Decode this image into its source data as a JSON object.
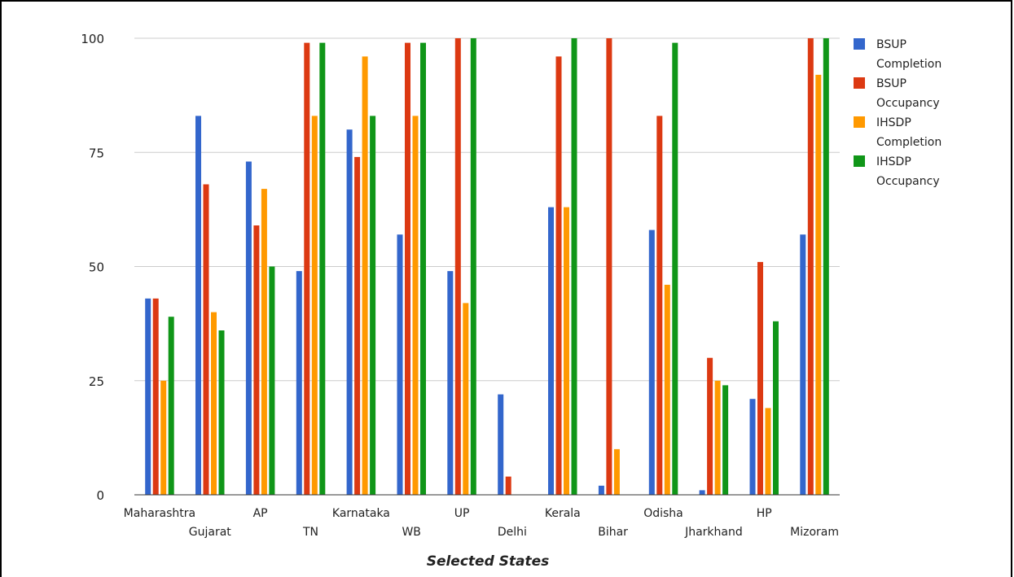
{
  "chart_data": {
    "type": "bar",
    "title": "",
    "xlabel": "Selected States",
    "ylabel": "",
    "ylim": [
      0,
      100
    ],
    "yticks": [
      "0",
      "25",
      "50",
      "75",
      "100"
    ],
    "grid": true,
    "legend_position": "right",
    "categories": [
      "Maharashtra",
      "Gujarat",
      "AP",
      "TN",
      "Karnataka",
      "WB",
      "UP",
      "Delhi",
      "Kerala",
      "Bihar",
      "Odisha",
      "Jharkhand",
      "HP",
      "Mizoram"
    ],
    "series": [
      {
        "name": "BSUP Completion",
        "legend_lines": [
          "BSUP",
          "Completion"
        ],
        "color": "#3366cc",
        "values": [
          43,
          83,
          73,
          49,
          80,
          57,
          49,
          22,
          63,
          2,
          58,
          1,
          21,
          57
        ]
      },
      {
        "name": "BSUP Occupancy",
        "legend_lines": [
          "BSUP",
          "Occupancy"
        ],
        "color": "#dc3912",
        "values": [
          43,
          68,
          59,
          99,
          74,
          99,
          100,
          4,
          96,
          100,
          83,
          30,
          51,
          100
        ]
      },
      {
        "name": "IHSDP Completion",
        "legend_lines": [
          "IHSDP",
          "Completion"
        ],
        "color": "#ff9900",
        "values": [
          25,
          40,
          67,
          83,
          96,
          83,
          42,
          0,
          63,
          10,
          46,
          25,
          19,
          92
        ]
      },
      {
        "name": "IHSDP Occupancy",
        "legend_lines": [
          "IHSDP",
          "Occupancy"
        ],
        "color": "#109618",
        "values": [
          39,
          36,
          50,
          99,
          83,
          99,
          100,
          0,
          100,
          0,
          99,
          24,
          38,
          100
        ]
      }
    ]
  }
}
